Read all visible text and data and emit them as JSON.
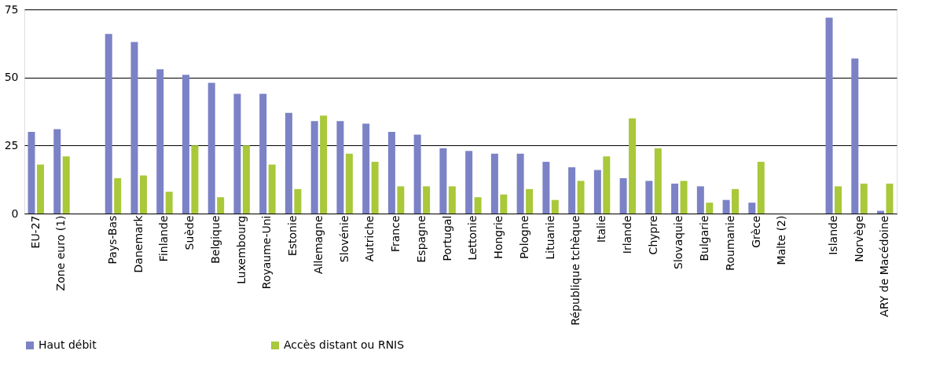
{
  "chart_data": {
    "type": "bar",
    "categories": [
      "EU-27",
      "Zone euro (1)",
      null,
      "Pays-Bas",
      "Danemark",
      "Finlande",
      "Suède",
      "Belgique",
      "Luxembourg",
      "Royaume-Uni",
      "Estonie",
      "Allemagne",
      "Slovénie",
      "Autriche",
      "France",
      "Espagne",
      "Portugal",
      "Lettonie",
      "Hongrie",
      "Pologne",
      "Lituanie",
      "République tchèque",
      "Italie",
      "Irlande",
      "Chypre",
      "Slovaquie",
      "Bulgarie",
      "Roumanie",
      "Grèce",
      "Malte (2)",
      null,
      "Islande",
      "Norvège",
      "ARY de Macédoine"
    ],
    "series": [
      {
        "name": "Haut débit",
        "color": "#7b82c6",
        "values": [
          30,
          31,
          null,
          66,
          63,
          53,
          51,
          48,
          44,
          44,
          37,
          34,
          34,
          33,
          30,
          29,
          24,
          23,
          22,
          22,
          19,
          17,
          16,
          13,
          12,
          11,
          10,
          5,
          4,
          null,
          null,
          72,
          57,
          1
        ]
      },
      {
        "name": "Accès distant ou RNIS",
        "color": "#a9c83a",
        "values": [
          18,
          21,
          null,
          13,
          14,
          8,
          25,
          6,
          25,
          18,
          9,
          36,
          22,
          19,
          10,
          10,
          10,
          6,
          7,
          9,
          5,
          12,
          21,
          35,
          24,
          12,
          4,
          9,
          19,
          null,
          null,
          10,
          11,
          11
        ]
      }
    ],
    "ylim": [
      0,
      75
    ],
    "yticks": [
      0,
      25,
      50,
      75
    ],
    "grid": "y",
    "legend": "bottom"
  }
}
